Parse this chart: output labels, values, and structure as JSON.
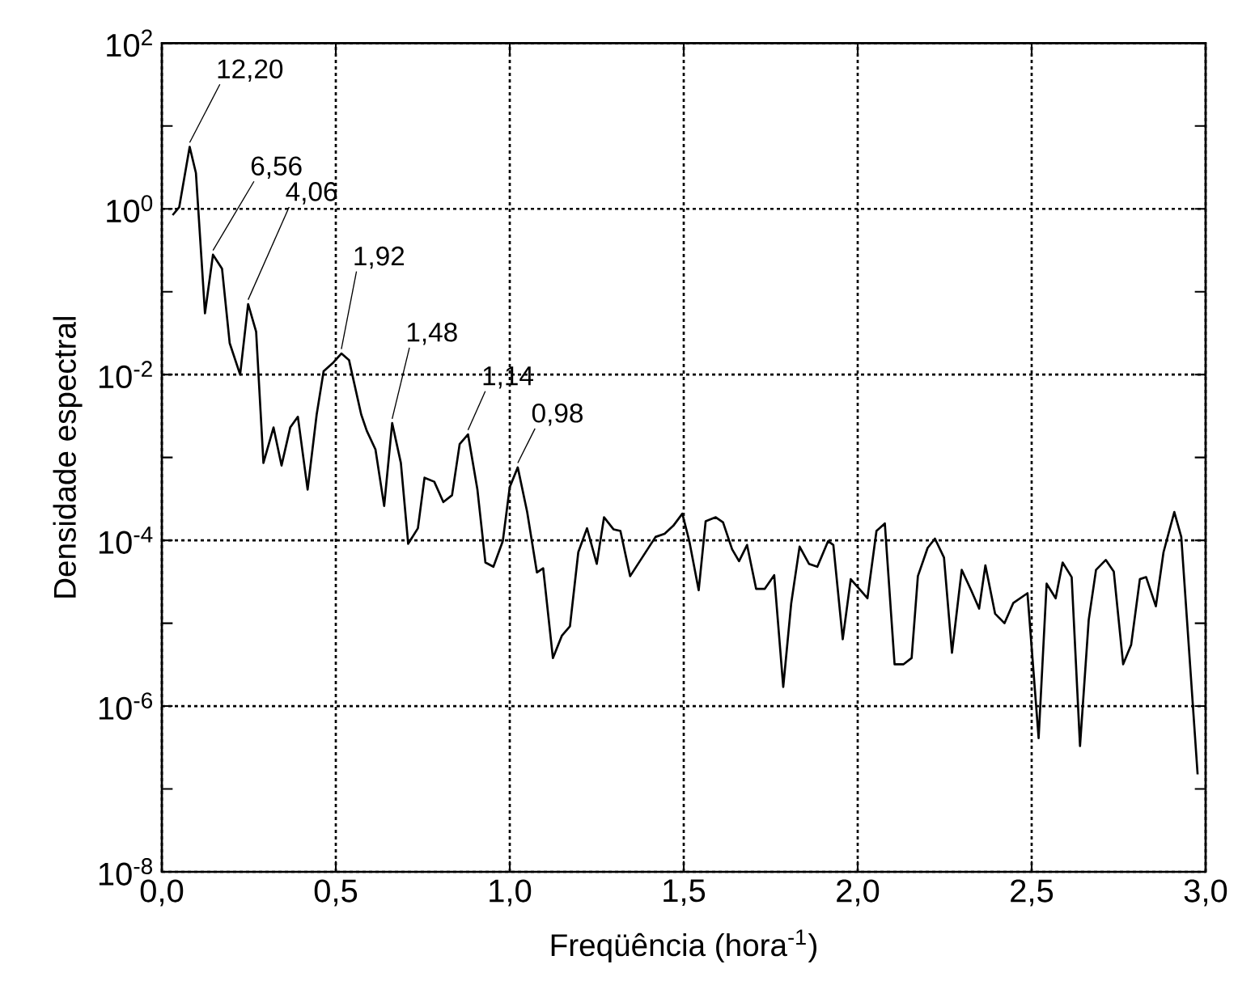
{
  "chart_data": {
    "type": "line",
    "xlabel": "Freqüência (hora$^{-1}$)",
    "ylabel": "Densidade espectral",
    "x": [
      0.031,
      0.05,
      0.08,
      0.098,
      0.124,
      0.147,
      0.173,
      0.195,
      0.225,
      0.248,
      0.271,
      0.292,
      0.321,
      0.344,
      0.369,
      0.391,
      0.419,
      0.445,
      0.465,
      0.493,
      0.516,
      0.538,
      0.573,
      0.589,
      0.614,
      0.639,
      0.662,
      0.687,
      0.708,
      0.736,
      0.755,
      0.783,
      0.809,
      0.834,
      0.856,
      0.88,
      0.907,
      0.93,
      0.953,
      0.98,
      1.0,
      1.023,
      1.05,
      1.078,
      1.096,
      1.124,
      1.15,
      1.173,
      1.197,
      1.222,
      1.25,
      1.271,
      1.298,
      1.318,
      1.346,
      1.419,
      1.445,
      1.47,
      1.496,
      1.516,
      1.543,
      1.563,
      1.592,
      1.613,
      1.639,
      1.659,
      1.682,
      1.708,
      1.733,
      1.76,
      1.786,
      1.809,
      1.833,
      1.86,
      1.884,
      1.915,
      1.93,
      1.957,
      1.98,
      2.028,
      2.054,
      2.078,
      2.106,
      2.132,
      2.155,
      2.173,
      2.201,
      2.222,
      2.248,
      2.271,
      2.299,
      2.326,
      2.349,
      2.367,
      2.395,
      2.422,
      2.447,
      2.488,
      2.52,
      2.543,
      2.569,
      2.589,
      2.615,
      2.639,
      2.664,
      2.685,
      2.713,
      2.736,
      2.763,
      2.786,
      2.811,
      2.829,
      2.857,
      2.879,
      2.91,
      2.93,
      2.977
    ],
    "series": [
      {
        "color": "#000000",
        "values": [
          0.84,
          1.05,
          5.6,
          2.7,
          0.055,
          0.28,
          0.19,
          0.024,
          0.01,
          0.071,
          0.033,
          0.00086,
          0.0023,
          0.0008,
          0.0023,
          0.0031,
          0.00041,
          0.0033,
          0.011,
          0.014,
          0.018,
          0.015,
          0.0033,
          0.0021,
          0.00125,
          0.00026,
          0.0026,
          0.00086,
          9.1e-05,
          0.00014,
          0.00057,
          0.00051,
          0.00029,
          0.00035,
          0.00145,
          0.0019,
          0.00041,
          5.4e-05,
          4.8e-05,
          9.8e-05,
          0.00044,
          0.00076,
          0.00022,
          4.1e-05,
          4.6e-05,
          3.8e-06,
          7.1e-06,
          9.2e-06,
          7.2e-05,
          0.00014,
          5.2e-05,
          0.00019,
          0.000136,
          0.00013,
          3.7e-05,
          0.00011,
          0.00012,
          0.00015,
          0.00021,
          9.8e-05,
          2.5e-05,
          0.00017,
          0.00019,
          0.000165,
          7.8e-05,
          5.6e-05,
          8.8e-05,
          2.6e-05,
          2.6e-05,
          3.8e-05,
          1.7e-06,
          1.75e-05,
          8.4e-05,
          5.2e-05,
          4.8e-05,
          9.8e-05,
          8.8e-05,
          6.4e-06,
          3.4e-05,
          2e-05,
          0.00013,
          0.00016,
          3.2e-06,
          3.2e-06,
          3.8e-06,
          3.7e-05,
          8.1e-05,
          0.000105,
          6.2e-05,
          4.4e-06,
          4.4e-05,
          2.5e-05,
          1.5e-05,
          5e-05,
          1.3e-05,
          1e-05,
          1.75e-05,
          2.3e-05,
          4.1e-07,
          3e-05,
          2e-05,
          5.4e-05,
          3.6e-05,
          3.3e-07,
          1.1e-05,
          4.4e-05,
          5.8e-05,
          4.2e-05,
          3.2e-06,
          5.5e-06,
          3.4e-05,
          3.6e-05,
          1.6e-05,
          7.2e-05,
          0.00022,
          0.00011,
          1.5e-07
        ]
      }
    ],
    "xlim": [
      0,
      3
    ],
    "ylim": [
      1e-08,
      100
    ],
    "xticks": [
      {
        "value": 0,
        "label": "0,0"
      },
      {
        "value": 0.5,
        "label": "0,5"
      },
      {
        "value": 1,
        "label": "1,0"
      },
      {
        "value": 1.5,
        "label": "1,5"
      },
      {
        "value": 2,
        "label": "2,0"
      },
      {
        "value": 2.5,
        "label": "2,5"
      },
      {
        "value": 3,
        "label": "3,0"
      }
    ],
    "yticks": [
      {
        "value": 1e-08,
        "label": "10$^{-8}$"
      },
      {
        "value": 1e-07,
        "label": null
      },
      {
        "value": 1e-06,
        "label": "10$^{-6}$"
      },
      {
        "value": 1e-05,
        "label": null
      },
      {
        "value": 0.0001,
        "label": "10$^{-4}$"
      },
      {
        "value": 0.001,
        "label": null
      },
      {
        "value": 0.01,
        "label": "10$^{-2}$"
      },
      {
        "value": 0.1,
        "label": null
      },
      {
        "value": 1,
        "label": "10$^{0}$"
      },
      {
        "value": 10,
        "label": null
      },
      {
        "value": 100,
        "label": "10$^{2}$"
      }
    ],
    "log": "y",
    "grid": true,
    "marker": "none",
    "line_style": "solid",
    "annotations": [
      {
        "text": "12,20",
        "x": 0.08,
        "y": 5.6
      },
      {
        "text": "6,56",
        "x": 0.147,
        "y": 0.28
      },
      {
        "text": "4,06",
        "x": 0.248,
        "y": 0.071
      },
      {
        "text": "1,92",
        "x": 0.516,
        "y": 0.018
      },
      {
        "text": "1,48",
        "x": 0.662,
        "y": 0.0026
      },
      {
        "text": "1,14",
        "x": 0.88,
        "y": 0.0019
      },
      {
        "text": "0,98",
        "x": 1.023,
        "y": 0.00076
      }
    ]
  }
}
